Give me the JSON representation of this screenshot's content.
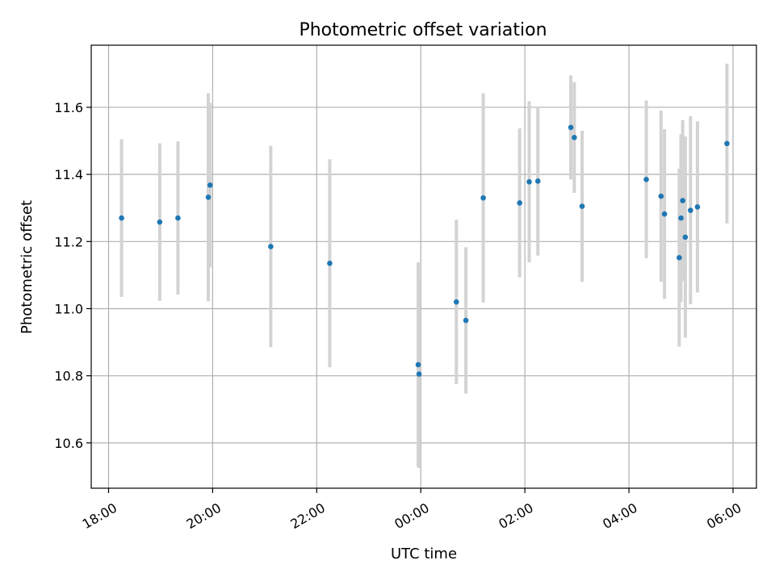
{
  "chart_data": {
    "type": "scatter",
    "title": "Photometric offset variation",
    "xlabel": "UTC time",
    "ylabel": "Photometric offset",
    "x_axis": "time",
    "x_range": [
      "2000-01-01T17:40",
      "2000-01-02T06:27"
    ],
    "x_ticks": [
      {
        "t": "2000-01-01T18:00",
        "label": "18:00"
      },
      {
        "t": "2000-01-01T20:00",
        "label": "20:00"
      },
      {
        "t": "2000-01-01T22:00",
        "label": "22:00"
      },
      {
        "t": "2000-01-02T00:00",
        "label": "00:00"
      },
      {
        "t": "2000-01-02T02:00",
        "label": "02:00"
      },
      {
        "t": "2000-01-02T04:00",
        "label": "04:00"
      },
      {
        "t": "2000-01-02T06:00",
        "label": "06:00"
      }
    ],
    "ylim": [
      10.465,
      11.785
    ],
    "y_ticks": [
      10.6,
      10.8,
      11.0,
      11.2,
      11.4,
      11.6
    ],
    "grid": true,
    "series": [
      {
        "color": "#1f77b4",
        "errorbar_color": "#d3d3d3",
        "points": [
          {
            "t": "2000-01-01T18:15",
            "y": 11.27,
            "err": 0.235
          },
          {
            "t": "2000-01-01T18:59",
            "y": 11.258,
            "err": 0.235
          },
          {
            "t": "2000-01-01T19:20",
            "y": 11.27,
            "err": 0.228
          },
          {
            "t": "2000-01-01T19:55",
            "y": 11.332,
            "err": 0.31
          },
          {
            "t": "2000-01-01T19:57",
            "y": 11.368,
            "err": 0.245
          },
          {
            "t": "2000-01-01T21:07",
            "y": 11.185,
            "err": 0.3
          },
          {
            "t": "2000-01-01T22:15",
            "y": 11.135,
            "err": 0.31
          },
          {
            "t": "2000-01-01T23:57",
            "y": 10.833,
            "err": 0.305
          },
          {
            "t": "2000-01-01T23:58",
            "y": 10.805,
            "err": 0.28
          },
          {
            "t": "2000-01-02T00:41",
            "y": 11.02,
            "err": 0.245
          },
          {
            "t": "2000-01-02T00:52",
            "y": 10.965,
            "err": 0.218
          },
          {
            "t": "2000-01-02T01:12",
            "y": 11.33,
            "err": 0.312
          },
          {
            "t": "2000-01-02T01:54",
            "y": 11.315,
            "err": 0.222
          },
          {
            "t": "2000-01-02T02:05",
            "y": 11.378,
            "err": 0.24
          },
          {
            "t": "2000-01-02T02:15",
            "y": 11.38,
            "err": 0.222
          },
          {
            "t": "2000-01-02T02:53",
            "y": 11.54,
            "err": 0.155
          },
          {
            "t": "2000-01-02T02:57",
            "y": 11.51,
            "err": 0.165
          },
          {
            "t": "2000-01-02T03:06",
            "y": 11.305,
            "err": 0.225
          },
          {
            "t": "2000-01-02T04:20",
            "y": 11.385,
            "err": 0.235
          },
          {
            "t": "2000-01-02T04:37",
            "y": 11.335,
            "err": 0.255
          },
          {
            "t": "2000-01-02T04:41",
            "y": 11.282,
            "err": 0.253
          },
          {
            "t": "2000-01-02T04:58",
            "y": 11.152,
            "err": 0.265
          },
          {
            "t": "2000-01-02T05:00",
            "y": 11.27,
            "err": 0.25
          },
          {
            "t": "2000-01-02T05:02",
            "y": 11.322,
            "err": 0.24
          },
          {
            "t": "2000-01-02T05:05",
            "y": 11.213,
            "err": 0.3
          },
          {
            "t": "2000-01-02T05:11",
            "y": 11.293,
            "err": 0.28
          },
          {
            "t": "2000-01-02T05:19",
            "y": 11.303,
            "err": 0.255
          },
          {
            "t": "2000-01-02T05:53",
            "y": 11.492,
            "err": 0.238
          }
        ]
      }
    ]
  }
}
